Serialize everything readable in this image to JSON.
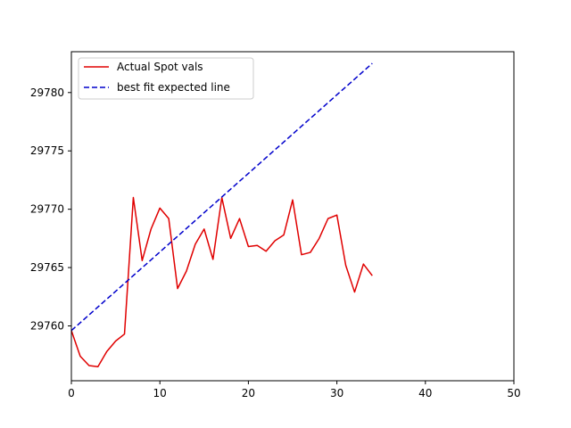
{
  "chart_data": {
    "type": "line",
    "title": "",
    "xlabel": "",
    "ylabel": "",
    "xlim": [
      0,
      50
    ],
    "ylim": [
      29755.3,
      29783.5
    ],
    "xticks": [
      0,
      10,
      20,
      30,
      40,
      50
    ],
    "yticks": [
      29760,
      29765,
      29770,
      29775,
      29780
    ],
    "grid": false,
    "legend_position": "upper left",
    "series": [
      {
        "name": "Actual Spot vals",
        "color": "#e00000",
        "style": "solid",
        "x": [
          0,
          1,
          2,
          3,
          4,
          5,
          6,
          7,
          8,
          9,
          10,
          11,
          12,
          13,
          14,
          15,
          16,
          17,
          18,
          19,
          20,
          21,
          22,
          23,
          24,
          25,
          26,
          27,
          28,
          29,
          30,
          31,
          32,
          33,
          34
        ],
        "y": [
          29759.6,
          29757.4,
          29756.6,
          29756.5,
          29757.8,
          29758.7,
          29759.3,
          29771.0,
          29765.6,
          29768.3,
          29770.1,
          29769.2,
          29763.2,
          29764.7,
          29767.0,
          29768.3,
          29765.7,
          29771.0,
          29767.5,
          29769.2,
          29766.8,
          29766.9,
          29766.4,
          29767.3,
          29767.8,
          29770.8,
          29766.1,
          29766.3,
          29767.5,
          29769.2,
          29769.5,
          29765.2,
          29762.9,
          29765.3,
          29764.3
        ]
      },
      {
        "name": "best fit expected line",
        "color": "#0000cc",
        "style": "dashed",
        "x": [
          0,
          34
        ],
        "y": [
          29759.6,
          29782.5
        ]
      }
    ]
  }
}
